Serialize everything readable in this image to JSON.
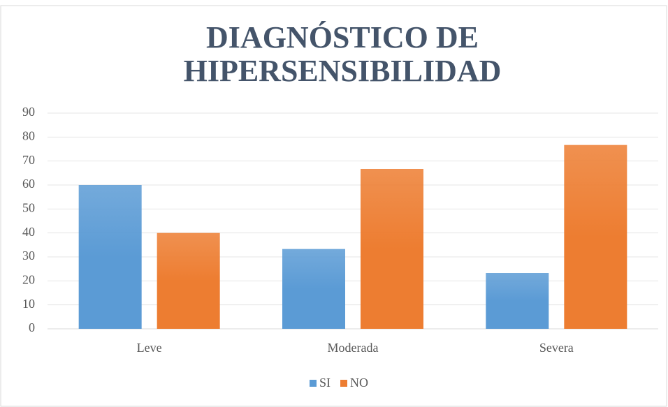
{
  "chart_data": {
    "type": "bar",
    "title": [
      "DIAGNÓSTICO DE",
      "HIPERSENSIBILIDAD"
    ],
    "categories": [
      "Leve",
      "Moderada",
      "Severa"
    ],
    "series": [
      {
        "name": "SI",
        "color": "#5b9bd5",
        "values": [
          60,
          33.3,
          23.3
        ]
      },
      {
        "name": "NO",
        "color": "#ed7d31",
        "values": [
          40,
          66.7,
          76.7
        ]
      }
    ],
    "ylim": [
      0,
      90
    ],
    "yticks": [
      0,
      10,
      20,
      30,
      40,
      50,
      60,
      70,
      80,
      90
    ],
    "grid": true,
    "legend": "bottom"
  }
}
